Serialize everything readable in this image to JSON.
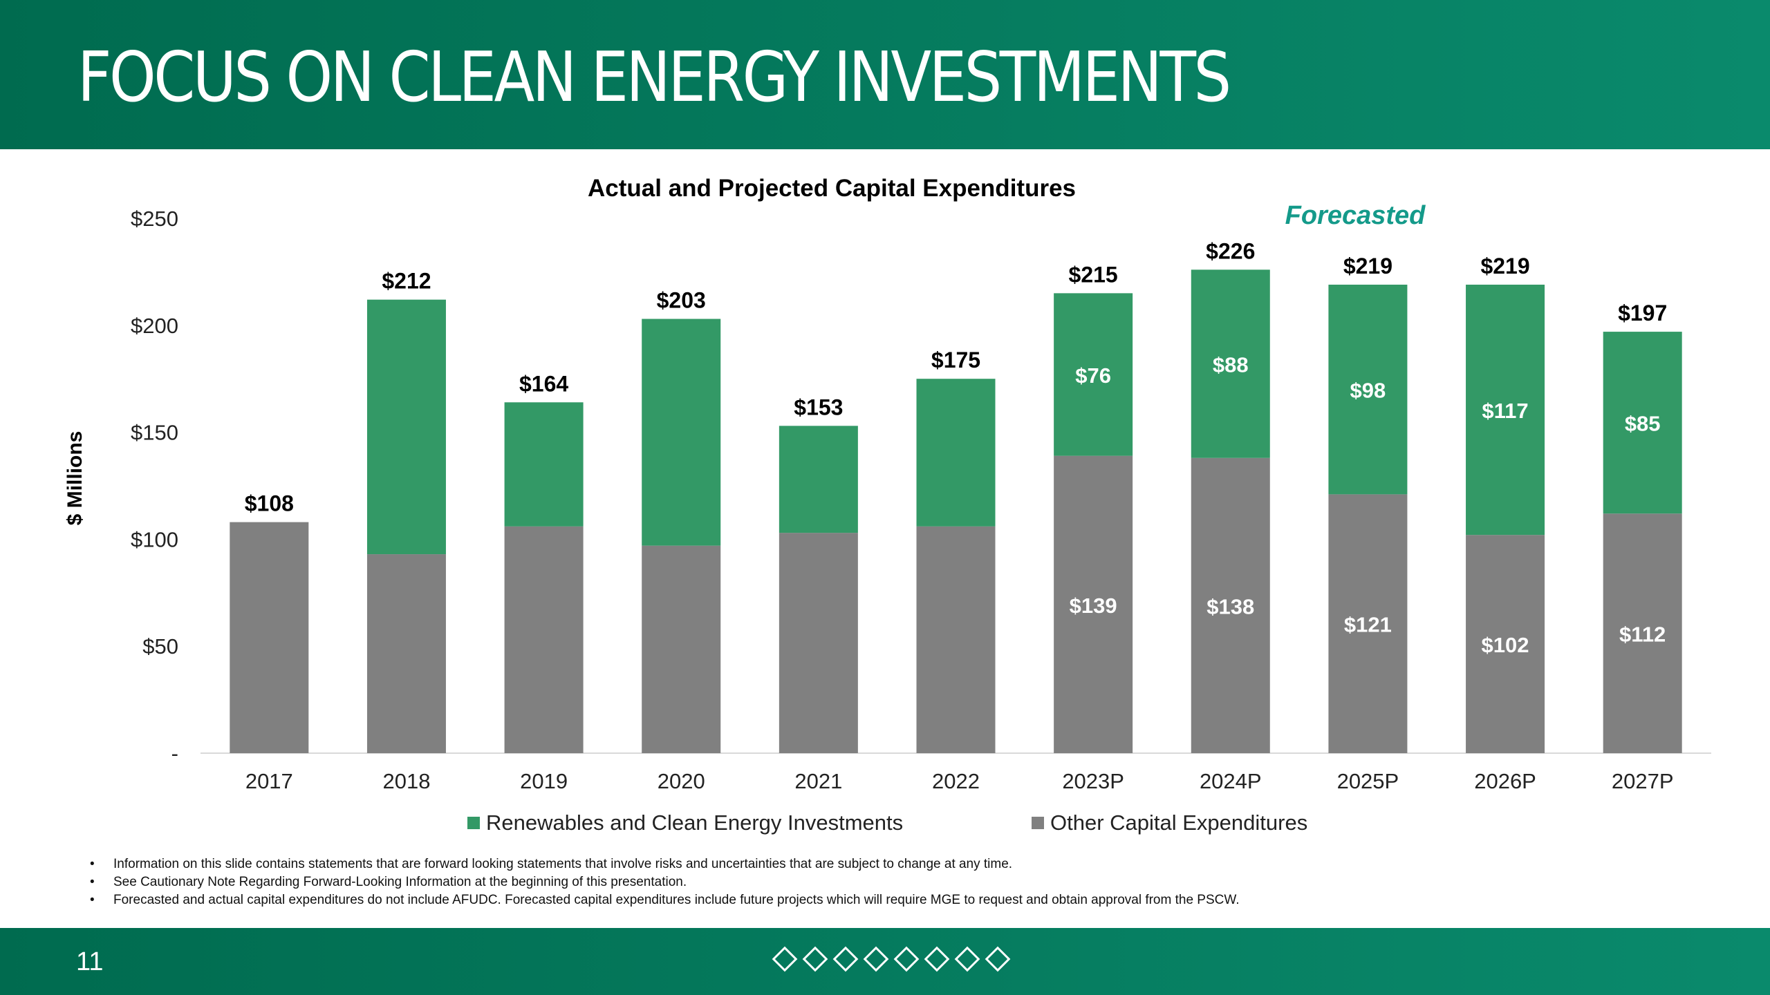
{
  "slide": {
    "title": "FOCUS ON CLEAN ENERGY INVESTMENTS",
    "page_number": "11",
    "brand_colors": {
      "header": "#006b4f",
      "header_end": "#0a8a6c"
    }
  },
  "chart_data": {
    "type": "bar",
    "stacked": true,
    "title": "Actual and Projected Capital Expenditures",
    "ylabel": "$ Millions",
    "xlabel": "",
    "ylim": [
      0,
      250
    ],
    "y_ticks": [
      0,
      50,
      100,
      150,
      200,
      250
    ],
    "y_tick_labels": [
      "-",
      "$50",
      "$100",
      "$150",
      "$200",
      "$250"
    ],
    "categories": [
      "2017",
      "2018",
      "2019",
      "2020",
      "2021",
      "2022",
      "2023P",
      "2024P",
      "2025P",
      "2026P",
      "2027P"
    ],
    "series": [
      {
        "name": "Other Capital Expenditures",
        "color": "#808080",
        "values": [
          108,
          93,
          106,
          97,
          103,
          106,
          139,
          138,
          121,
          102,
          112
        ],
        "labels": [
          "",
          "",
          "",
          "",
          "",
          "",
          "$139",
          "$138",
          "$121",
          "$102",
          "$112"
        ]
      },
      {
        "name": "Renewables and Clean Energy Investments",
        "color": "#339966",
        "values": [
          0,
          119,
          58,
          106,
          50,
          69,
          76,
          88,
          98,
          117,
          85
        ],
        "labels": [
          "",
          "",
          "",
          "",
          "",
          "",
          "$76",
          "$88",
          "$98",
          "$117",
          "$85"
        ]
      }
    ],
    "totals": [
      108,
      212,
      164,
      203,
      153,
      175,
      215,
      226,
      219,
      219,
      197
    ],
    "total_labels": [
      "$108",
      "$212",
      "$164",
      "$203",
      "$153",
      "$175",
      "$215",
      "$226",
      "$219",
      "$219",
      "$197"
    ],
    "legend": [
      {
        "label": "Renewables and Clean Energy Investments",
        "color": "#339966"
      },
      {
        "label": "Other Capital Expenditures",
        "color": "#808080"
      }
    ],
    "legend_position": "bottom",
    "annotation": {
      "text": "Forecasted",
      "color": "#149a8a"
    },
    "grid": false
  },
  "notes": [
    "Information on this slide contains statements that are forward looking statements that involve risks and uncertainties that are subject to change at any time.",
    "See Cautionary Note Regarding Forward-Looking Information at the beginning of this presentation.",
    "Forecasted and actual capital expenditures do not include AFUDC. Forecasted capital expenditures include future projects which will require MGE to request and obtain approval from the PSCW."
  ],
  "footer_icons": [
    "diamond-icon",
    "diamond-icon",
    "diamond-icon",
    "diamond-icon",
    "diamond-icon",
    "diamond-icon",
    "diamond-icon",
    "diamond-icon"
  ]
}
